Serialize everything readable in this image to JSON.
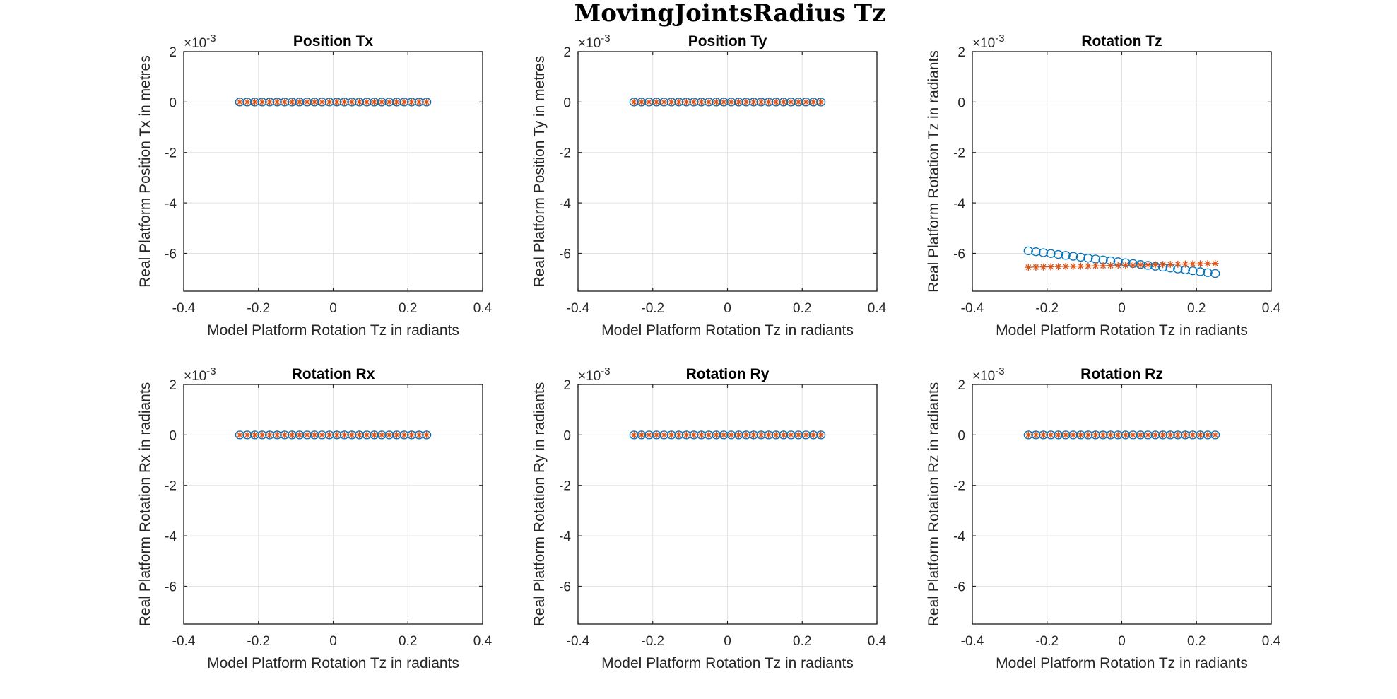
{
  "figure": {
    "title": "MovingJointsRadius Tz",
    "colors": {
      "series1": "#0072BD",
      "series2": "#D95319"
    }
  },
  "chart_data": [
    {
      "type": "scatter",
      "title": "Position Tx",
      "xlabel": "Model Platform Rotation Tz in radiants",
      "ylabel": "Real Platform Position Tx in metres",
      "y_exponent_label": "×10",
      "y_exponent": "-3",
      "xlim": [
        -0.4,
        0.4
      ],
      "ylim": [
        -7.5,
        2
      ],
      "xticks": [
        "-0.4",
        "-0.2",
        "0",
        "0.2",
        "0.4"
      ],
      "yticks": [
        "2",
        "0",
        "-2",
        "-4",
        "-6"
      ],
      "grid": true,
      "x_start": -0.25,
      "x_end": 0.25,
      "n_points": 26,
      "series": [
        {
          "marker": "circle",
          "y_start": 0,
          "y_end": 0
        },
        {
          "marker": "star",
          "y_start": 0,
          "y_end": 0
        }
      ]
    },
    {
      "type": "scatter",
      "title": "Position Ty",
      "xlabel": "Model Platform Rotation Tz in radiants",
      "ylabel": "Real Platform Position Ty in metres",
      "y_exponent_label": "×10",
      "y_exponent": "-3",
      "xlim": [
        -0.4,
        0.4
      ],
      "ylim": [
        -7.5,
        2
      ],
      "xticks": [
        "-0.4",
        "-0.2",
        "0",
        "0.2",
        "0.4"
      ],
      "yticks": [
        "2",
        "0",
        "-2",
        "-4",
        "-6"
      ],
      "grid": true,
      "x_start": -0.25,
      "x_end": 0.25,
      "n_points": 26,
      "series": [
        {
          "marker": "circle",
          "y_start": 0,
          "y_end": 0
        },
        {
          "marker": "star",
          "y_start": 0,
          "y_end": 0
        }
      ]
    },
    {
      "type": "scatter",
      "title": "Rotation Tz",
      "xlabel": "Model Platform Rotation Tz in radiants",
      "ylabel": "Real Platform Rotation Tz in radiants",
      "y_exponent_label": "×10",
      "y_exponent": "-3",
      "xlim": [
        -0.4,
        0.4
      ],
      "ylim": [
        -7.5,
        2
      ],
      "xticks": [
        "-0.4",
        "-0.2",
        "0",
        "0.2",
        "0.4"
      ],
      "yticks": [
        "2",
        "0",
        "-2",
        "-4",
        "-6"
      ],
      "grid": true,
      "x_start": -0.25,
      "x_end": 0.25,
      "n_points": 26,
      "series": [
        {
          "marker": "circle",
          "y_start": -5.9,
          "y_end": -6.8
        },
        {
          "marker": "star",
          "y_start": -6.55,
          "y_end": -6.4
        }
      ]
    },
    {
      "type": "scatter",
      "title": "Rotation Rx",
      "xlabel": "Model Platform Rotation Tz in radiants",
      "ylabel": "Real Platform Rotation Rx in radiants",
      "y_exponent_label": "×10",
      "y_exponent": "-3",
      "xlim": [
        -0.4,
        0.4
      ],
      "ylim": [
        -7.5,
        2
      ],
      "xticks": [
        "-0.4",
        "-0.2",
        "0",
        "0.2",
        "0.4"
      ],
      "yticks": [
        "2",
        "0",
        "-2",
        "-4",
        "-6"
      ],
      "grid": true,
      "x_start": -0.25,
      "x_end": 0.25,
      "n_points": 26,
      "series": [
        {
          "marker": "circle",
          "y_start": 0,
          "y_end": 0
        },
        {
          "marker": "star",
          "y_start": 0,
          "y_end": 0
        }
      ]
    },
    {
      "type": "scatter",
      "title": "Rotation Ry",
      "xlabel": "Model Platform Rotation Tz in radiants",
      "ylabel": "Real Platform Rotation Ry in radiants",
      "y_exponent_label": "×10",
      "y_exponent": "-3",
      "xlim": [
        -0.4,
        0.4
      ],
      "ylim": [
        -7.5,
        2
      ],
      "xticks": [
        "-0.4",
        "-0.2",
        "0",
        "0.2",
        "0.4"
      ],
      "yticks": [
        "2",
        "0",
        "-2",
        "-4",
        "-6"
      ],
      "grid": true,
      "x_start": -0.25,
      "x_end": 0.25,
      "n_points": 26,
      "series": [
        {
          "marker": "circle",
          "y_start": 0,
          "y_end": 0
        },
        {
          "marker": "star",
          "y_start": 0,
          "y_end": 0
        }
      ]
    },
    {
      "type": "scatter",
      "title": "Rotation Rz",
      "xlabel": "Model Platform Rotation Tz in radiants",
      "ylabel": "Real Platform Rotation Rz in radiants",
      "y_exponent_label": "×10",
      "y_exponent": "-3",
      "xlim": [
        -0.4,
        0.4
      ],
      "ylim": [
        -7.5,
        2
      ],
      "xticks": [
        "-0.4",
        "-0.2",
        "0",
        "0.2",
        "0.4"
      ],
      "yticks": [
        "2",
        "0",
        "-2",
        "-4",
        "-6"
      ],
      "grid": true,
      "x_start": -0.25,
      "x_end": 0.25,
      "n_points": 26,
      "series": [
        {
          "marker": "circle",
          "y_start": 0,
          "y_end": 0
        },
        {
          "marker": "star",
          "y_start": 0,
          "y_end": 0
        }
      ]
    }
  ]
}
